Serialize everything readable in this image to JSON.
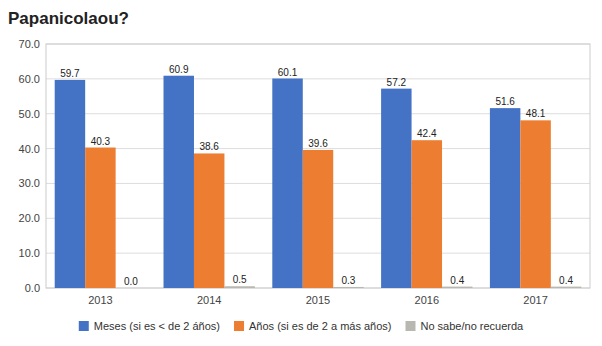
{
  "chart_data": {
    "type": "bar",
    "title": "Papanicolaou?",
    "categories": [
      "2013",
      "2014",
      "2015",
      "2016",
      "2017"
    ],
    "series": [
      {
        "name": "Meses (si es < de 2 áños)",
        "color": "#4472C4",
        "values": [
          59.7,
          60.9,
          60.1,
          57.2,
          51.6
        ]
      },
      {
        "name": "Años (si es de 2 a más años)",
        "color": "#ED7D31",
        "values": [
          40.3,
          38.6,
          39.6,
          42.4,
          48.1
        ]
      },
      {
        "name": "No sabe/no recuerda",
        "color": "#B8B8B0",
        "values": [
          0.0,
          0.5,
          0.3,
          0.4,
          0.4
        ],
        "value_labels": [
          "0.0",
          "0.5",
          "0.3",
          "0.4",
          "0.4"
        ]
      }
    ],
    "ylim": [
      0.0,
      70.0
    ],
    "yticks": [
      {
        "value": 0.0,
        "label": "0.0"
      },
      {
        "value": 10.0,
        "label": "10.0"
      },
      {
        "value": 20.0,
        "label": "20.0"
      },
      {
        "value": 30.0,
        "label": "30.0"
      },
      {
        "value": 40.0,
        "label": "40.0"
      },
      {
        "value": 50.0,
        "label": "50.0"
      },
      {
        "value": 60.0,
        "label": "60.0"
      },
      {
        "value": 70.0,
        "label": "70.0"
      }
    ],
    "grid": true,
    "data_labels": true,
    "legend": "bottom"
  }
}
